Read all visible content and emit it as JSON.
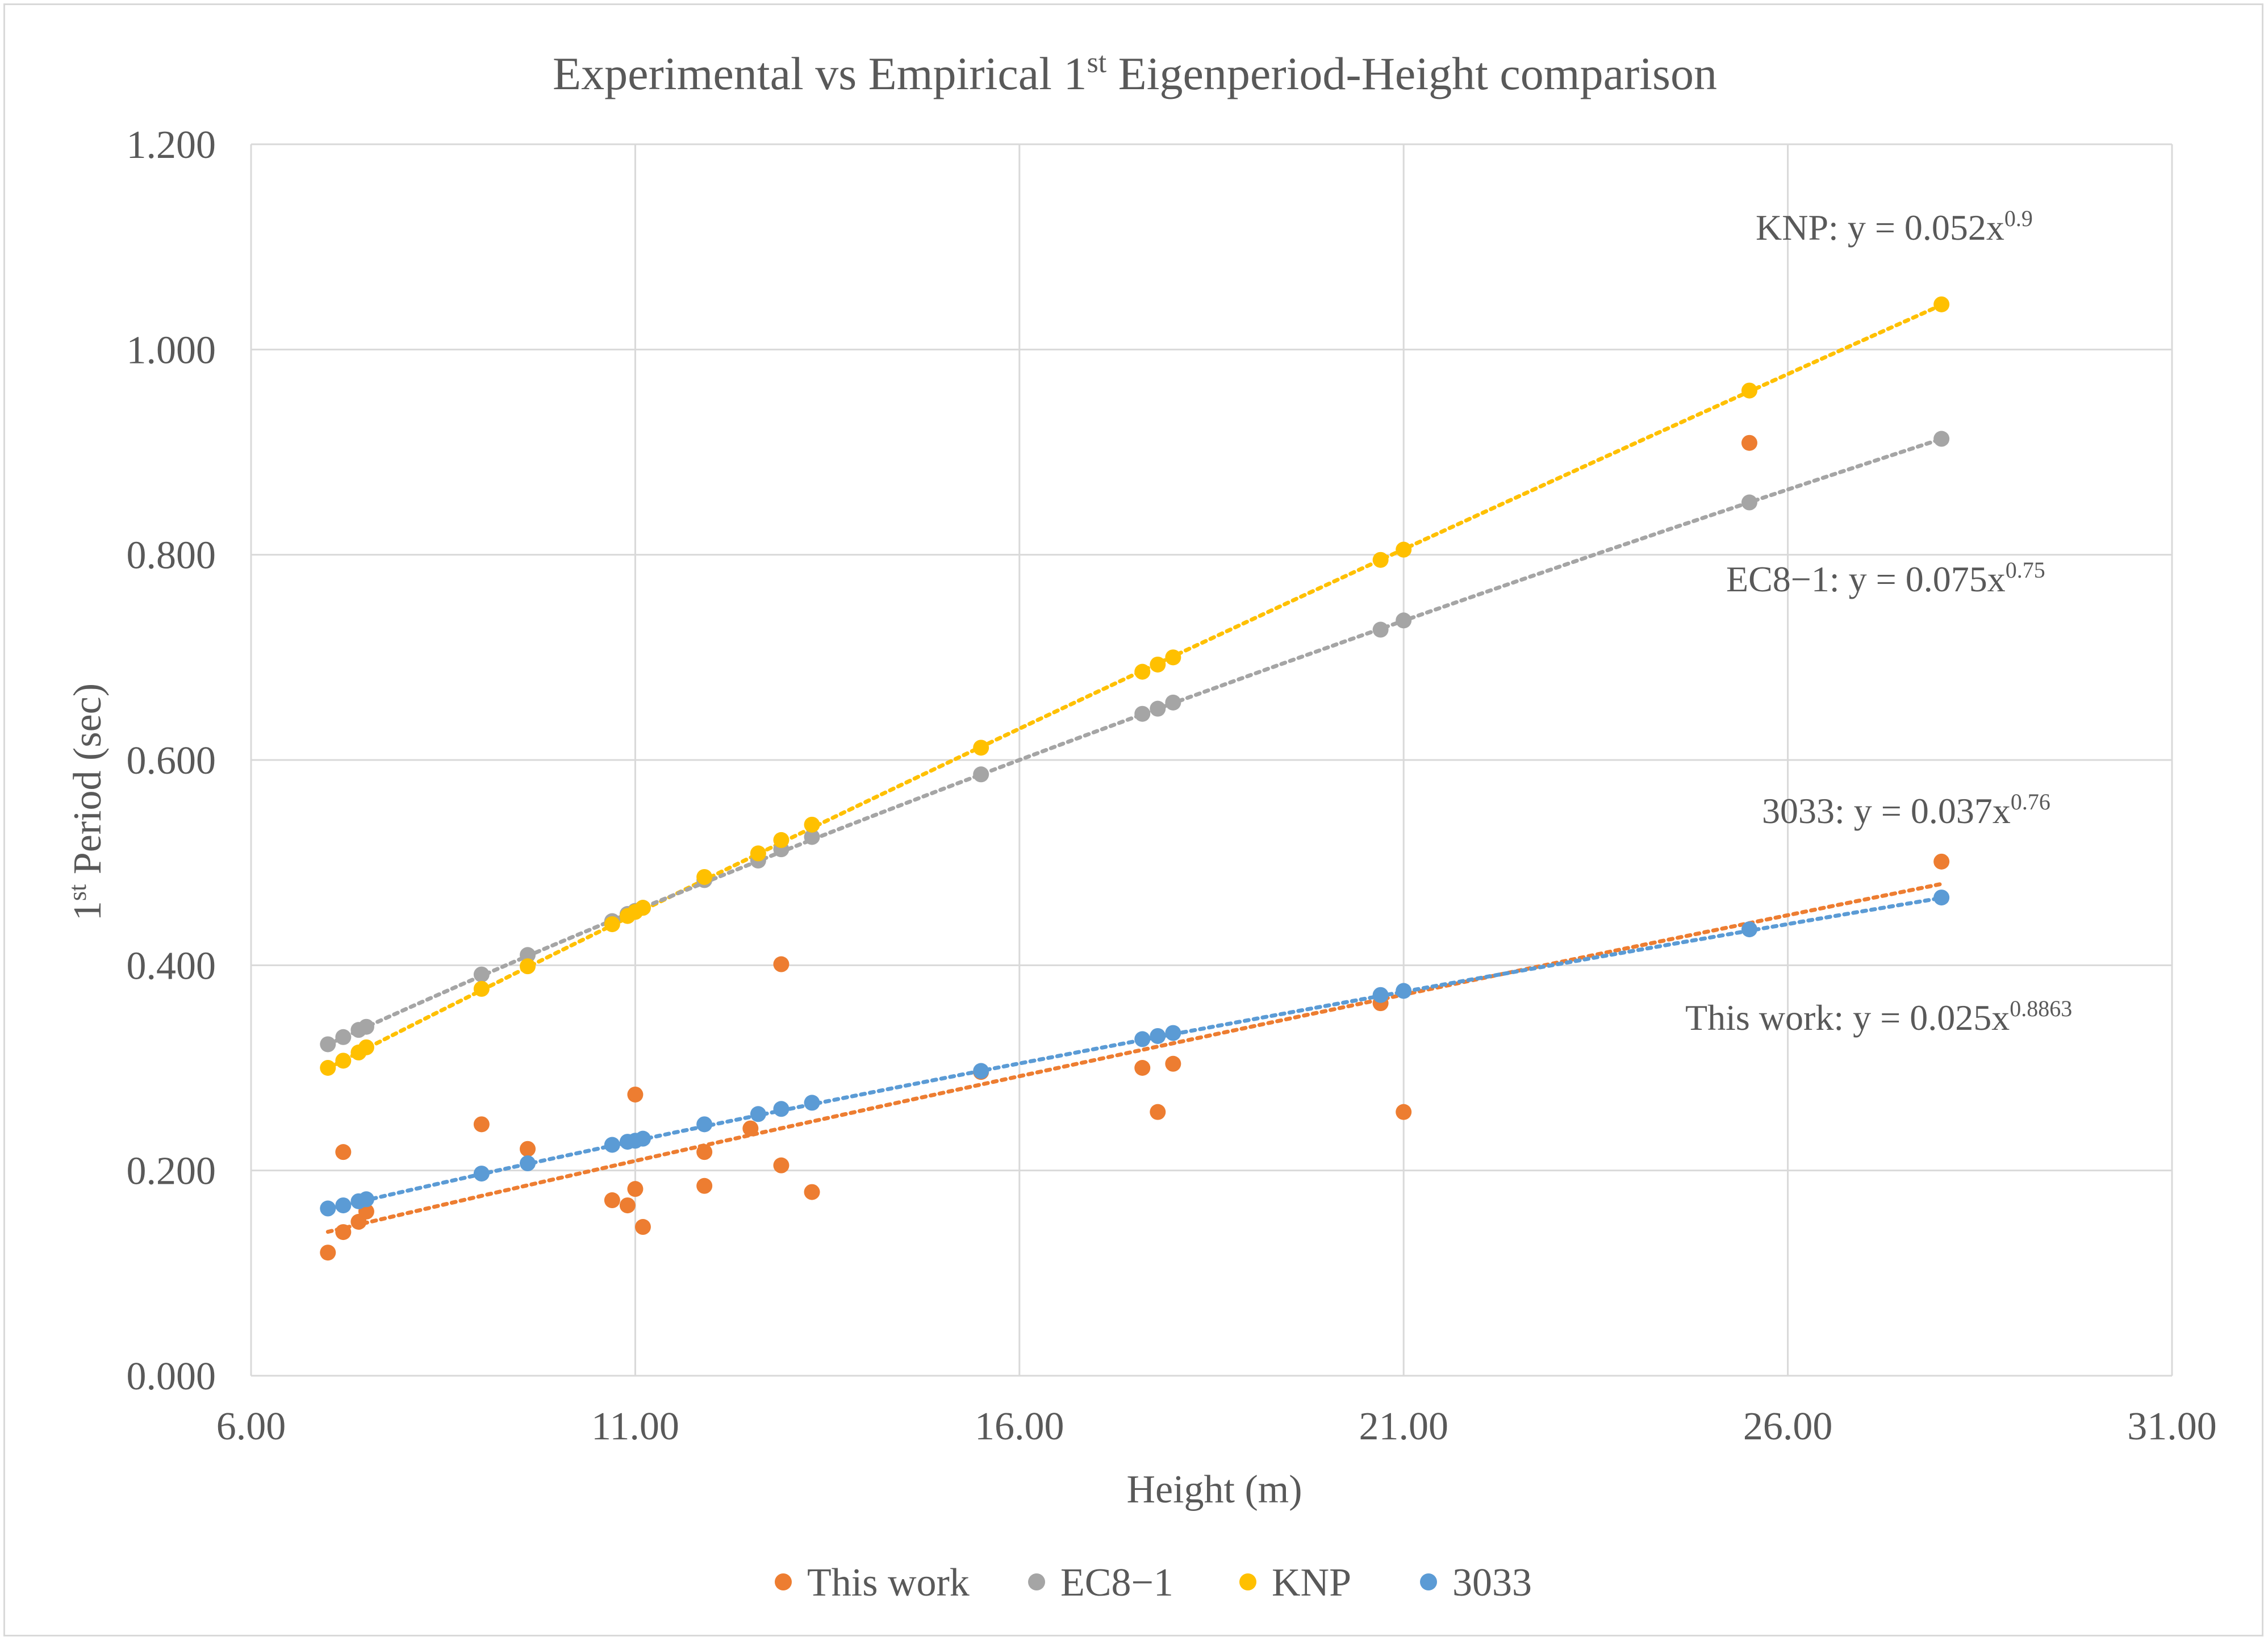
{
  "chart_data": {
    "type": "scatter",
    "title_parts": {
      "before": "Experimental vs Empirical 1",
      "sup": "st",
      "after": " Eigenperiod-Height comparison"
    },
    "xlabel": "Height (m)",
    "ylabel_parts": {
      "before": "1",
      "sup": "st",
      "after": " Period (sec)"
    },
    "xlim": [
      6,
      31
    ],
    "ylim": [
      0,
      1.2
    ],
    "x_ticks": [
      6,
      11,
      16,
      21,
      26,
      31
    ],
    "x_tick_labels": [
      "6.00",
      "11.00",
      "16.00",
      "21.00",
      "26.00",
      "31.00"
    ],
    "y_ticks": [
      0,
      0.2,
      0.4,
      0.6,
      0.8,
      1.0,
      1.2
    ],
    "y_tick_labels": [
      "0.000",
      "0.200",
      "0.400",
      "0.600",
      "0.800",
      "1.000",
      "1.200"
    ],
    "grid": true,
    "legend_position": "bottom",
    "x_heights": [
      7.0,
      7.2,
      7.4,
      7.5,
      9.0,
      9.6,
      10.7,
      10.9,
      11.0,
      11.1,
      11.9,
      12.6,
      12.9,
      13.3,
      15.5,
      17.6,
      17.8,
      18.0,
      20.7,
      21.0,
      25.5,
      28.0
    ],
    "series": [
      {
        "name": "This work",
        "color": "#ED7D31",
        "x": [
          7.0,
          7.2,
          7.2,
          7.4,
          7.5,
          9.0,
          9.6,
          10.7,
          10.9,
          11.0,
          11.0,
          11.1,
          11.9,
          11.9,
          12.5,
          12.9,
          12.9,
          13.3,
          15.5,
          17.6,
          17.8,
          18.0,
          20.7,
          21.0,
          25.5,
          28.0
        ],
        "y": [
          0.12,
          0.14,
          0.218,
          0.15,
          0.16,
          0.245,
          0.221,
          0.171,
          0.166,
          0.182,
          0.274,
          0.145,
          0.218,
          0.185,
          0.241,
          0.205,
          0.401,
          0.179,
          0.296,
          0.3,
          0.257,
          0.304,
          0.363,
          0.257,
          0.909,
          0.501
        ],
        "trendline": {
          "a": 0.025,
          "b": 0.8863
        },
        "equation_label": "This work: y = 0.025x",
        "equation_exponent": "0.8863"
      },
      {
        "name": "EC8−1",
        "color": "#A5A5A5",
        "y": [
          0.323,
          0.33,
          0.337,
          0.34,
          0.391,
          0.41,
          0.443,
          0.45,
          0.453,
          0.456,
          0.483,
          0.502,
          0.513,
          0.525,
          0.586,
          0.645,
          0.65,
          0.656,
          0.727,
          0.736,
          0.851,
          0.913
        ],
        "trendline": {
          "a": 0.075,
          "b": 0.75
        },
        "equation_label": "EC8−1: y = 0.075x",
        "equation_exponent": "0.75"
      },
      {
        "name": "KNP",
        "color": "#FFC000",
        "y": [
          0.3,
          0.307,
          0.315,
          0.32,
          0.377,
          0.399,
          0.44,
          0.448,
          0.452,
          0.456,
          0.486,
          0.509,
          0.522,
          0.537,
          0.612,
          0.686,
          0.693,
          0.7,
          0.795,
          0.805,
          0.96,
          1.044
        ],
        "trendline": {
          "a": 0.052,
          "b": 0.9
        },
        "equation_label": "KNP: y = 0.052x",
        "equation_exponent": "0.9"
      },
      {
        "name": "3033",
        "color": "#5B9BD5",
        "y": [
          0.163,
          0.166,
          0.17,
          0.172,
          0.197,
          0.207,
          0.225,
          0.228,
          0.229,
          0.231,
          0.245,
          0.255,
          0.26,
          0.266,
          0.297,
          0.328,
          0.331,
          0.334,
          0.371,
          0.375,
          0.435,
          0.466
        ],
        "trendline": {
          "a": 0.037,
          "b": 0.76
        },
        "equation_label": "3033: y = 0.037x",
        "equation_exponent": "0.76"
      }
    ]
  }
}
